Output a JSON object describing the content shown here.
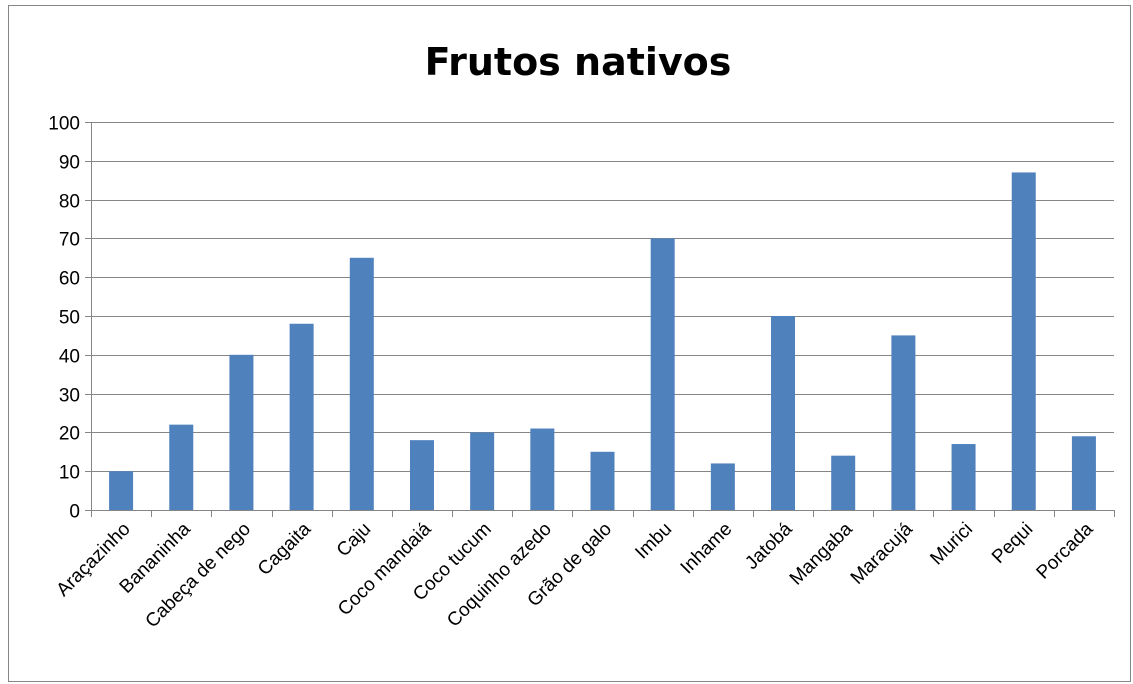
{
  "chart_data": {
    "type": "bar",
    "title": "Frutos nativos",
    "xlabel": "",
    "ylabel": "",
    "ylim": [
      0,
      100
    ],
    "yticks": [
      0,
      10,
      20,
      30,
      40,
      50,
      60,
      70,
      80,
      90,
      100
    ],
    "grid": true,
    "legend": "none",
    "bar_color": "#4F81BD",
    "categories": [
      "Araçazinho",
      "Bananinha",
      "Cabeça de nego",
      "Cagaita",
      "Caju",
      "Coco mandaiá",
      "Coco tucum",
      "Coquinho azedo",
      "Grão de galo",
      "Imbu",
      "Inhame",
      "Jatobá",
      "Mangaba",
      "Maracujá",
      "Murici",
      "Pequi",
      "Porcada"
    ],
    "series": [
      {
        "values": [
          10,
          22,
          40,
          48,
          65,
          18,
          20,
          21,
          15,
          70,
          12,
          50,
          14,
          45,
          17,
          87,
          19
        ]
      }
    ]
  }
}
